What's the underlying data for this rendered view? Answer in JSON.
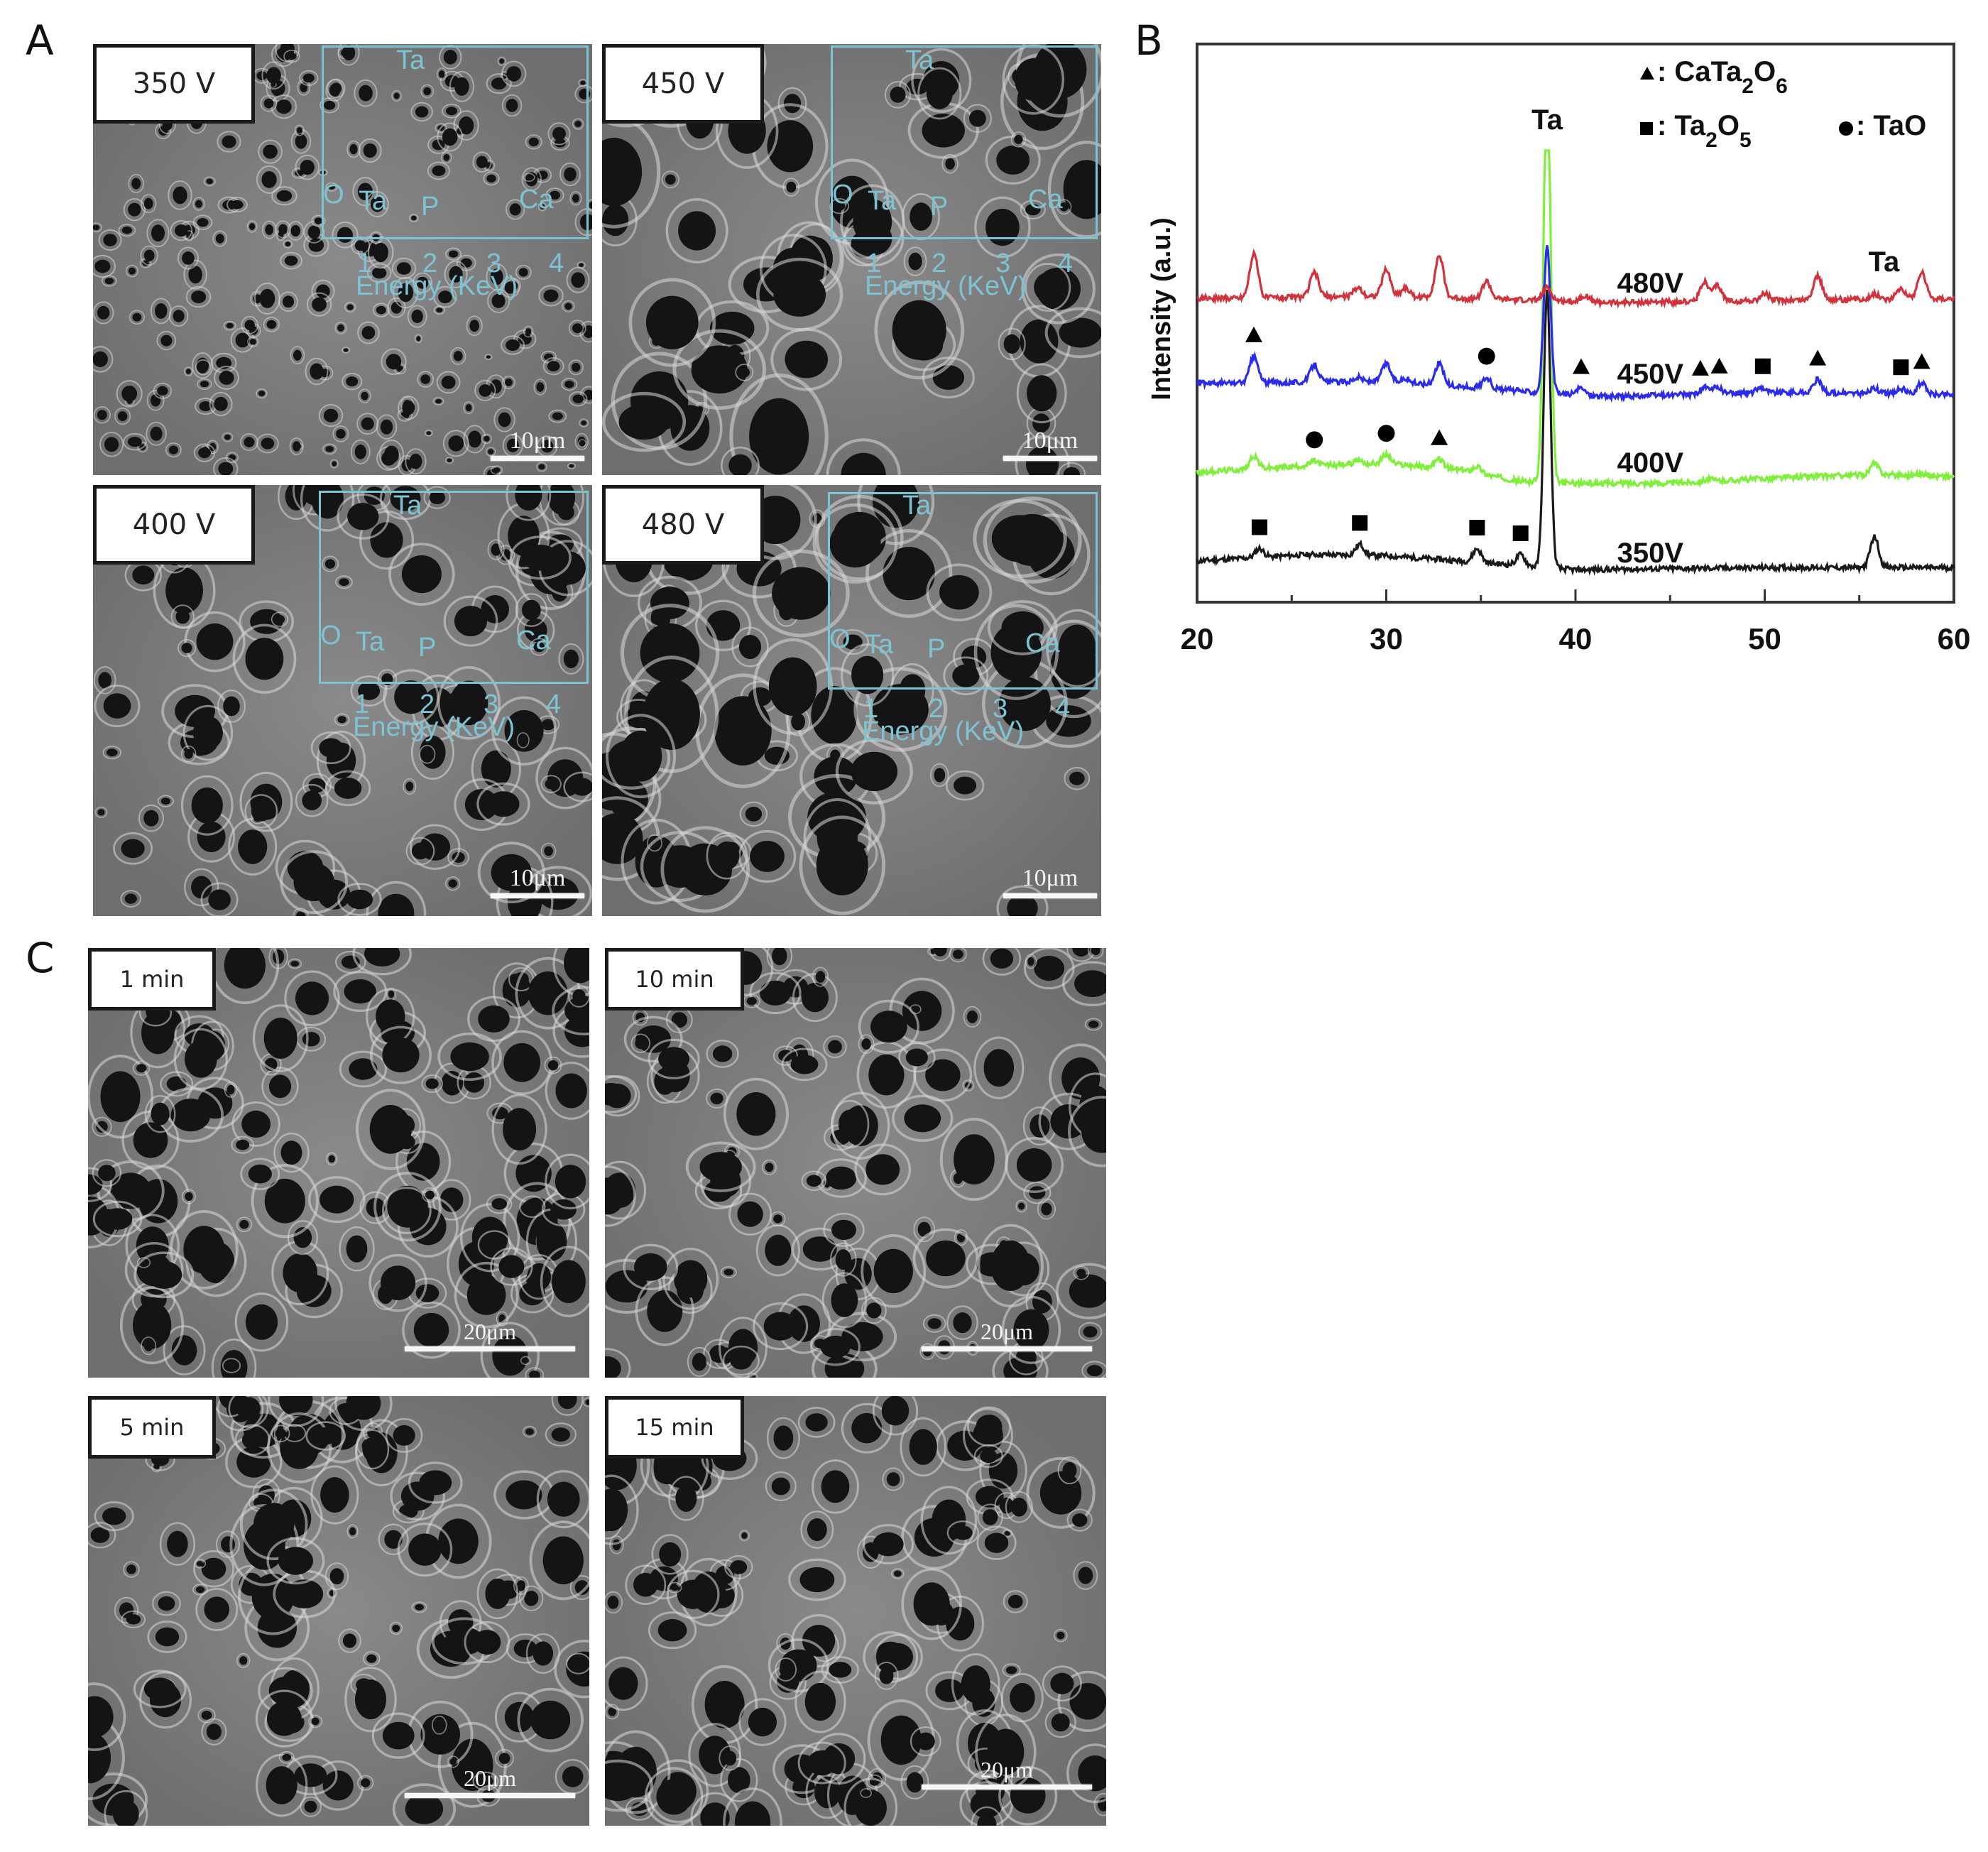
{
  "figure": {
    "panels": {
      "A": {
        "letter": "A",
        "images": [
          {
            "label": "350 V",
            "scale_bar": "10μm",
            "eds": {
              "peaks": [
                "Ta",
                "O",
                "Ta",
                "P",
                "Ca"
              ],
              "ticks": [
                "1",
                "2",
                "3",
                "4"
              ],
              "xlabel": "Energy (KeV)"
            }
          },
          {
            "label": "450 V",
            "scale_bar": "10μm",
            "eds": {
              "peaks": [
                "Ta",
                "O",
                "Ta",
                "P",
                "Ca"
              ],
              "ticks": [
                "1",
                "2",
                "3",
                "4"
              ],
              "xlabel": "Energy (KeV)"
            }
          },
          {
            "label": "400 V",
            "scale_bar": "10μm",
            "eds": {
              "peaks": [
                "Ta",
                "O",
                "Ta",
                "P",
                "Ca"
              ],
              "ticks": [
                "1",
                "2",
                "3",
                "4"
              ],
              "xlabel": "Energy (KeV)"
            }
          },
          {
            "label": "480 V",
            "scale_bar": "10μm",
            "eds": {
              "peaks": [
                "Ta",
                "O",
                "Ta",
                "P",
                "Ca"
              ],
              "ticks": [
                "1",
                "2",
                "3",
                "4"
              ],
              "xlabel": "Energy (KeV)"
            }
          }
        ]
      },
      "B": {
        "letter": "B"
      },
      "C": {
        "letter": "C",
        "images": [
          {
            "label": "1 min",
            "scale_bar": "20μm"
          },
          {
            "label": "10 min",
            "scale_bar": "20μm"
          },
          {
            "label": "5 min",
            "scale_bar": "20μm"
          },
          {
            "label": "15 min",
            "scale_bar": "20μm"
          }
        ]
      }
    },
    "eds_color": "#7cc3d4"
  },
  "chart_data": {
    "type": "line",
    "title": "",
    "xlabel": "",
    "ylabel": "Intensity (a.u.)",
    "xlim": [
      20,
      60
    ],
    "xticks": [
      20,
      30,
      40,
      50,
      60
    ],
    "minor_xticks": [
      25,
      35,
      45,
      55
    ],
    "grid": false,
    "legend": {
      "position": "upper right",
      "entries": [
        {
          "marker": "triangle",
          "label": "CaTa2O6"
        },
        {
          "marker": "square",
          "label": "Ta2O5"
        },
        {
          "marker": "circle",
          "label": "TaO"
        }
      ]
    },
    "annotations": [
      {
        "text": "Ta",
        "x": 38.5,
        "note": "main Ta peak"
      },
      {
        "text": "Ta",
        "x": 55.8,
        "note": "above 480V trace"
      }
    ],
    "series": [
      {
        "name": "480V",
        "color": "#d1323b",
        "offset": 3,
        "peaks": [
          [
            23.0,
            1.0
          ],
          [
            26.2,
            0.55
          ],
          [
            28.5,
            0.2
          ],
          [
            30.0,
            0.6
          ],
          [
            31.0,
            0.2
          ],
          [
            32.8,
            0.95
          ],
          [
            35.3,
            0.4
          ],
          [
            38.5,
            0.3
          ],
          [
            40.5,
            0.15
          ],
          [
            46.8,
            0.45
          ],
          [
            47.5,
            0.35
          ],
          [
            50.0,
            0.15
          ],
          [
            52.8,
            0.55
          ],
          [
            55.8,
            0.12
          ],
          [
            57.2,
            0.25
          ],
          [
            58.3,
            0.6
          ]
        ],
        "background": [
          [
            20,
            0.0
          ],
          [
            30,
            0.05
          ],
          [
            38,
            -0.05
          ],
          [
            42,
            -0.1
          ],
          [
            50,
            -0.05
          ],
          [
            60,
            0.0
          ]
        ]
      },
      {
        "name": "450V",
        "color": "#2b2bf0",
        "offset": 2,
        "peaks": [
          [
            23.0,
            0.6
          ],
          [
            26.2,
            0.4
          ],
          [
            28.5,
            0.1
          ],
          [
            30.0,
            0.4
          ],
          [
            31.0,
            0.1
          ],
          [
            32.8,
            0.5
          ],
          [
            35.3,
            0.25
          ],
          [
            38.5,
            3.3
          ],
          [
            40.3,
            0.15
          ],
          [
            46.8,
            0.15
          ],
          [
            47.5,
            0.15
          ],
          [
            49.8,
            0.12
          ],
          [
            52.8,
            0.3
          ],
          [
            55.8,
            0.12
          ],
          [
            57.2,
            0.12
          ],
          [
            58.3,
            0.25
          ]
        ],
        "background": [
          [
            20,
            0.0
          ],
          [
            30,
            0.05
          ],
          [
            38,
            -0.2
          ],
          [
            42,
            -0.3
          ],
          [
            50,
            -0.2
          ],
          [
            60,
            -0.25
          ]
        ]
      },
      {
        "name": "400V",
        "color": "#7ef03a",
        "offset": 1,
        "peaks": [
          [
            23.0,
            0.3
          ],
          [
            26.2,
            0.1
          ],
          [
            28.5,
            0.1
          ],
          [
            30.0,
            0.2
          ],
          [
            32.8,
            0.2
          ],
          [
            34.8,
            0.15
          ],
          [
            38.5,
            9.5
          ],
          [
            47.0,
            0.05
          ],
          [
            55.8,
            0.25
          ],
          [
            58.3,
            0.05
          ]
        ],
        "background": [
          [
            20,
            0.0
          ],
          [
            26,
            0.15
          ],
          [
            30,
            0.2
          ],
          [
            34,
            0.05
          ],
          [
            37,
            -0.2
          ],
          [
            40,
            -0.25
          ],
          [
            45,
            -0.25
          ],
          [
            52,
            -0.1
          ],
          [
            56,
            -0.05
          ],
          [
            60,
            -0.1
          ]
        ]
      },
      {
        "name": "350V",
        "color": "#1a1a1a",
        "offset": 0,
        "peaks": [
          [
            23.3,
            0.2
          ],
          [
            28.6,
            0.25
          ],
          [
            34.8,
            0.3
          ],
          [
            37.1,
            0.25
          ],
          [
            38.5,
            6.3
          ],
          [
            55.8,
            0.7
          ]
        ],
        "background": [
          [
            20,
            0.0
          ],
          [
            26,
            0.15
          ],
          [
            30,
            0.12
          ],
          [
            34,
            0.0
          ],
          [
            37,
            -0.1
          ],
          [
            40,
            -0.2
          ],
          [
            50,
            -0.15
          ],
          [
            60,
            -0.15
          ]
        ]
      }
    ],
    "phase_markers": [
      {
        "series": "450V",
        "marker": "triangle",
        "x": 23.0
      },
      {
        "series": "450V",
        "marker": "circle",
        "x": 35.3
      },
      {
        "series": "450V",
        "marker": "triangle",
        "x": 40.3
      },
      {
        "series": "450V",
        "marker": "triangle",
        "x": 46.6
      },
      {
        "series": "450V",
        "marker": "triangle",
        "x": 47.6
      },
      {
        "series": "450V",
        "marker": "square",
        "x": 49.9
      },
      {
        "series": "450V",
        "marker": "triangle",
        "x": 52.8
      },
      {
        "series": "450V",
        "marker": "square",
        "x": 57.2
      },
      {
        "series": "450V",
        "marker": "triangle",
        "x": 58.3
      },
      {
        "series": "400V",
        "marker": "circle",
        "x": 26.2
      },
      {
        "series": "400V",
        "marker": "circle",
        "x": 30.0
      },
      {
        "series": "400V",
        "marker": "triangle",
        "x": 32.8
      },
      {
        "series": "350V",
        "marker": "square",
        "x": 23.3
      },
      {
        "series": "350V",
        "marker": "square",
        "x": 28.6
      },
      {
        "series": "350V",
        "marker": "square",
        "x": 34.8
      },
      {
        "series": "350V",
        "marker": "square",
        "x": 37.1
      }
    ]
  }
}
